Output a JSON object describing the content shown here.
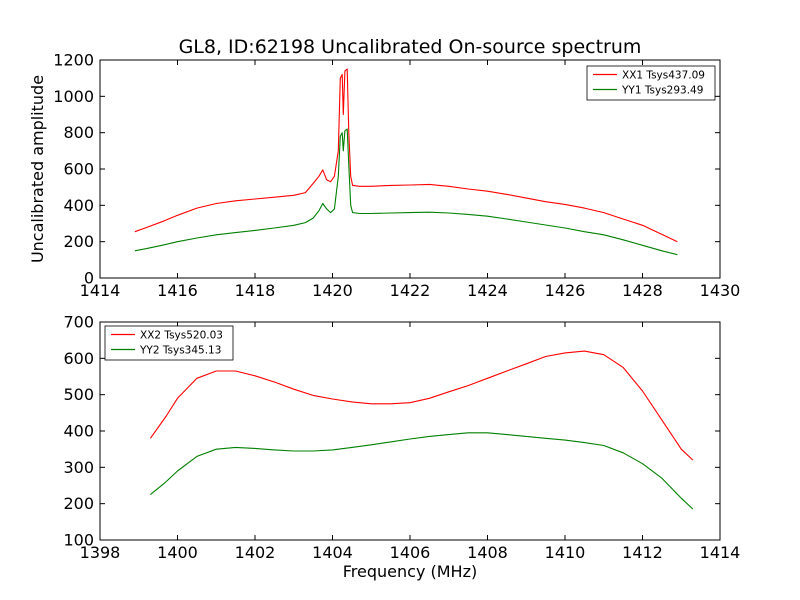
{
  "figure": {
    "title": "GL8, ID:62198 Uncalibrated On-source spectrum"
  },
  "chart_data": [
    {
      "type": "line",
      "xlabel": "",
      "ylabel": "Uncalibrated amplitude",
      "xlim": [
        1414,
        1430
      ],
      "ylim": [
        0,
        1200
      ],
      "xticks": [
        1414,
        1416,
        1418,
        1420,
        1422,
        1424,
        1426,
        1428,
        1430
      ],
      "yticks": [
        0,
        200,
        400,
        600,
        800,
        1000,
        1200
      ],
      "grid": false,
      "legend_position": "top-right",
      "series": [
        {
          "name": "XX1 Tsys437.09",
          "color": "#ff0000",
          "points": [
            [
              1414.9,
              255
            ],
            [
              1415.2,
              278
            ],
            [
              1415.6,
              310
            ],
            [
              1416.0,
              345
            ],
            [
              1416.5,
              385
            ],
            [
              1417.0,
              410
            ],
            [
              1417.5,
              425
            ],
            [
              1418.0,
              435
            ],
            [
              1418.5,
              445
            ],
            [
              1419.0,
              455
            ],
            [
              1419.3,
              470
            ],
            [
              1419.5,
              520
            ],
            [
              1419.65,
              560
            ],
            [
              1419.75,
              595
            ],
            [
              1419.85,
              540
            ],
            [
              1419.95,
              530
            ],
            [
              1420.05,
              560
            ],
            [
              1420.15,
              700
            ],
            [
              1420.2,
              1100
            ],
            [
              1420.25,
              1120
            ],
            [
              1420.28,
              900
            ],
            [
              1420.32,
              1140
            ],
            [
              1420.38,
              1150
            ],
            [
              1420.42,
              800
            ],
            [
              1420.47,
              560
            ],
            [
              1420.52,
              510
            ],
            [
              1420.7,
              505
            ],
            [
              1421.0,
              505
            ],
            [
              1421.5,
              510
            ],
            [
              1422.0,
              512
            ],
            [
              1422.5,
              515
            ],
            [
              1423.0,
              505
            ],
            [
              1423.5,
              490
            ],
            [
              1424.0,
              478
            ],
            [
              1424.5,
              460
            ],
            [
              1425.0,
              440
            ],
            [
              1425.5,
              420
            ],
            [
              1426.0,
              405
            ],
            [
              1426.5,
              385
            ],
            [
              1427.0,
              360
            ],
            [
              1427.5,
              325
            ],
            [
              1428.0,
              290
            ],
            [
              1428.5,
              240
            ],
            [
              1428.9,
              200
            ]
          ]
        },
        {
          "name": "YY1 Tsys293.49",
          "color": "#008000",
          "points": [
            [
              1414.9,
              150
            ],
            [
              1415.2,
              162
            ],
            [
              1415.6,
              180
            ],
            [
              1416.0,
              200
            ],
            [
              1416.5,
              220
            ],
            [
              1417.0,
              238
            ],
            [
              1417.5,
              250
            ],
            [
              1418.0,
              262
            ],
            [
              1418.5,
              275
            ],
            [
              1419.0,
              290
            ],
            [
              1419.3,
              305
            ],
            [
              1419.5,
              330
            ],
            [
              1419.65,
              370
            ],
            [
              1419.75,
              410
            ],
            [
              1419.85,
              380
            ],
            [
              1419.95,
              360
            ],
            [
              1420.05,
              380
            ],
            [
              1420.15,
              560
            ],
            [
              1420.2,
              780
            ],
            [
              1420.25,
              800
            ],
            [
              1420.28,
              700
            ],
            [
              1420.32,
              810
            ],
            [
              1420.38,
              820
            ],
            [
              1420.42,
              620
            ],
            [
              1420.47,
              400
            ],
            [
              1420.52,
              360
            ],
            [
              1420.7,
              355
            ],
            [
              1421.0,
              355
            ],
            [
              1421.5,
              358
            ],
            [
              1422.0,
              360
            ],
            [
              1422.5,
              362
            ],
            [
              1423.0,
              358
            ],
            [
              1423.5,
              350
            ],
            [
              1424.0,
              340
            ],
            [
              1424.5,
              325
            ],
            [
              1425.0,
              308
            ],
            [
              1425.5,
              292
            ],
            [
              1426.0,
              275
            ],
            [
              1426.5,
              255
            ],
            [
              1427.0,
              238
            ],
            [
              1427.5,
              210
            ],
            [
              1428.0,
              180
            ],
            [
              1428.5,
              150
            ],
            [
              1428.9,
              128
            ]
          ]
        }
      ]
    },
    {
      "type": "line",
      "xlabel": "Frequency (MHz)",
      "ylabel": "",
      "xlim": [
        1398,
        1414
      ],
      "ylim": [
        100,
        700
      ],
      "xticks": [
        1398,
        1400,
        1402,
        1404,
        1406,
        1408,
        1410,
        1412,
        1414
      ],
      "yticks": [
        100,
        200,
        300,
        400,
        500,
        600,
        700
      ],
      "grid": false,
      "legend_position": "top-left",
      "series": [
        {
          "name": "XX2 Tsys520.03",
          "color": "#ff0000",
          "points": [
            [
              1399.3,
              380
            ],
            [
              1399.7,
              440
            ],
            [
              1400.0,
              490
            ],
            [
              1400.5,
              545
            ],
            [
              1401.0,
              565
            ],
            [
              1401.5,
              565
            ],
            [
              1402.0,
              552
            ],
            [
              1402.5,
              535
            ],
            [
              1403.0,
              515
            ],
            [
              1403.5,
              498
            ],
            [
              1404.0,
              488
            ],
            [
              1404.5,
              480
            ],
            [
              1405.0,
              475
            ],
            [
              1405.5,
              475
            ],
            [
              1406.0,
              478
            ],
            [
              1406.5,
              490
            ],
            [
              1407.0,
              508
            ],
            [
              1407.5,
              525
            ],
            [
              1408.0,
              545
            ],
            [
              1408.5,
              565
            ],
            [
              1409.0,
              585
            ],
            [
              1409.5,
              605
            ],
            [
              1410.0,
              615
            ],
            [
              1410.5,
              620
            ],
            [
              1411.0,
              610
            ],
            [
              1411.5,
              575
            ],
            [
              1412.0,
              510
            ],
            [
              1412.5,
              430
            ],
            [
              1413.0,
              350
            ],
            [
              1413.3,
              320
            ]
          ]
        },
        {
          "name": "YY2 Tsys345.13",
          "color": "#008000",
          "points": [
            [
              1399.3,
              225
            ],
            [
              1399.7,
              260
            ],
            [
              1400.0,
              290
            ],
            [
              1400.5,
              330
            ],
            [
              1401.0,
              350
            ],
            [
              1401.5,
              355
            ],
            [
              1402.0,
              352
            ],
            [
              1402.5,
              348
            ],
            [
              1403.0,
              345
            ],
            [
              1403.5,
              345
            ],
            [
              1404.0,
              348
            ],
            [
              1404.5,
              355
            ],
            [
              1405.0,
              362
            ],
            [
              1405.5,
              370
            ],
            [
              1406.0,
              378
            ],
            [
              1406.5,
              385
            ],
            [
              1407.0,
              390
            ],
            [
              1407.5,
              395
            ],
            [
              1408.0,
              395
            ],
            [
              1408.5,
              390
            ],
            [
              1409.0,
              385
            ],
            [
              1409.5,
              380
            ],
            [
              1410.0,
              375
            ],
            [
              1410.5,
              368
            ],
            [
              1411.0,
              360
            ],
            [
              1411.5,
              340
            ],
            [
              1412.0,
              310
            ],
            [
              1412.5,
              270
            ],
            [
              1413.0,
              215
            ],
            [
              1413.3,
              185
            ]
          ]
        }
      ]
    }
  ]
}
